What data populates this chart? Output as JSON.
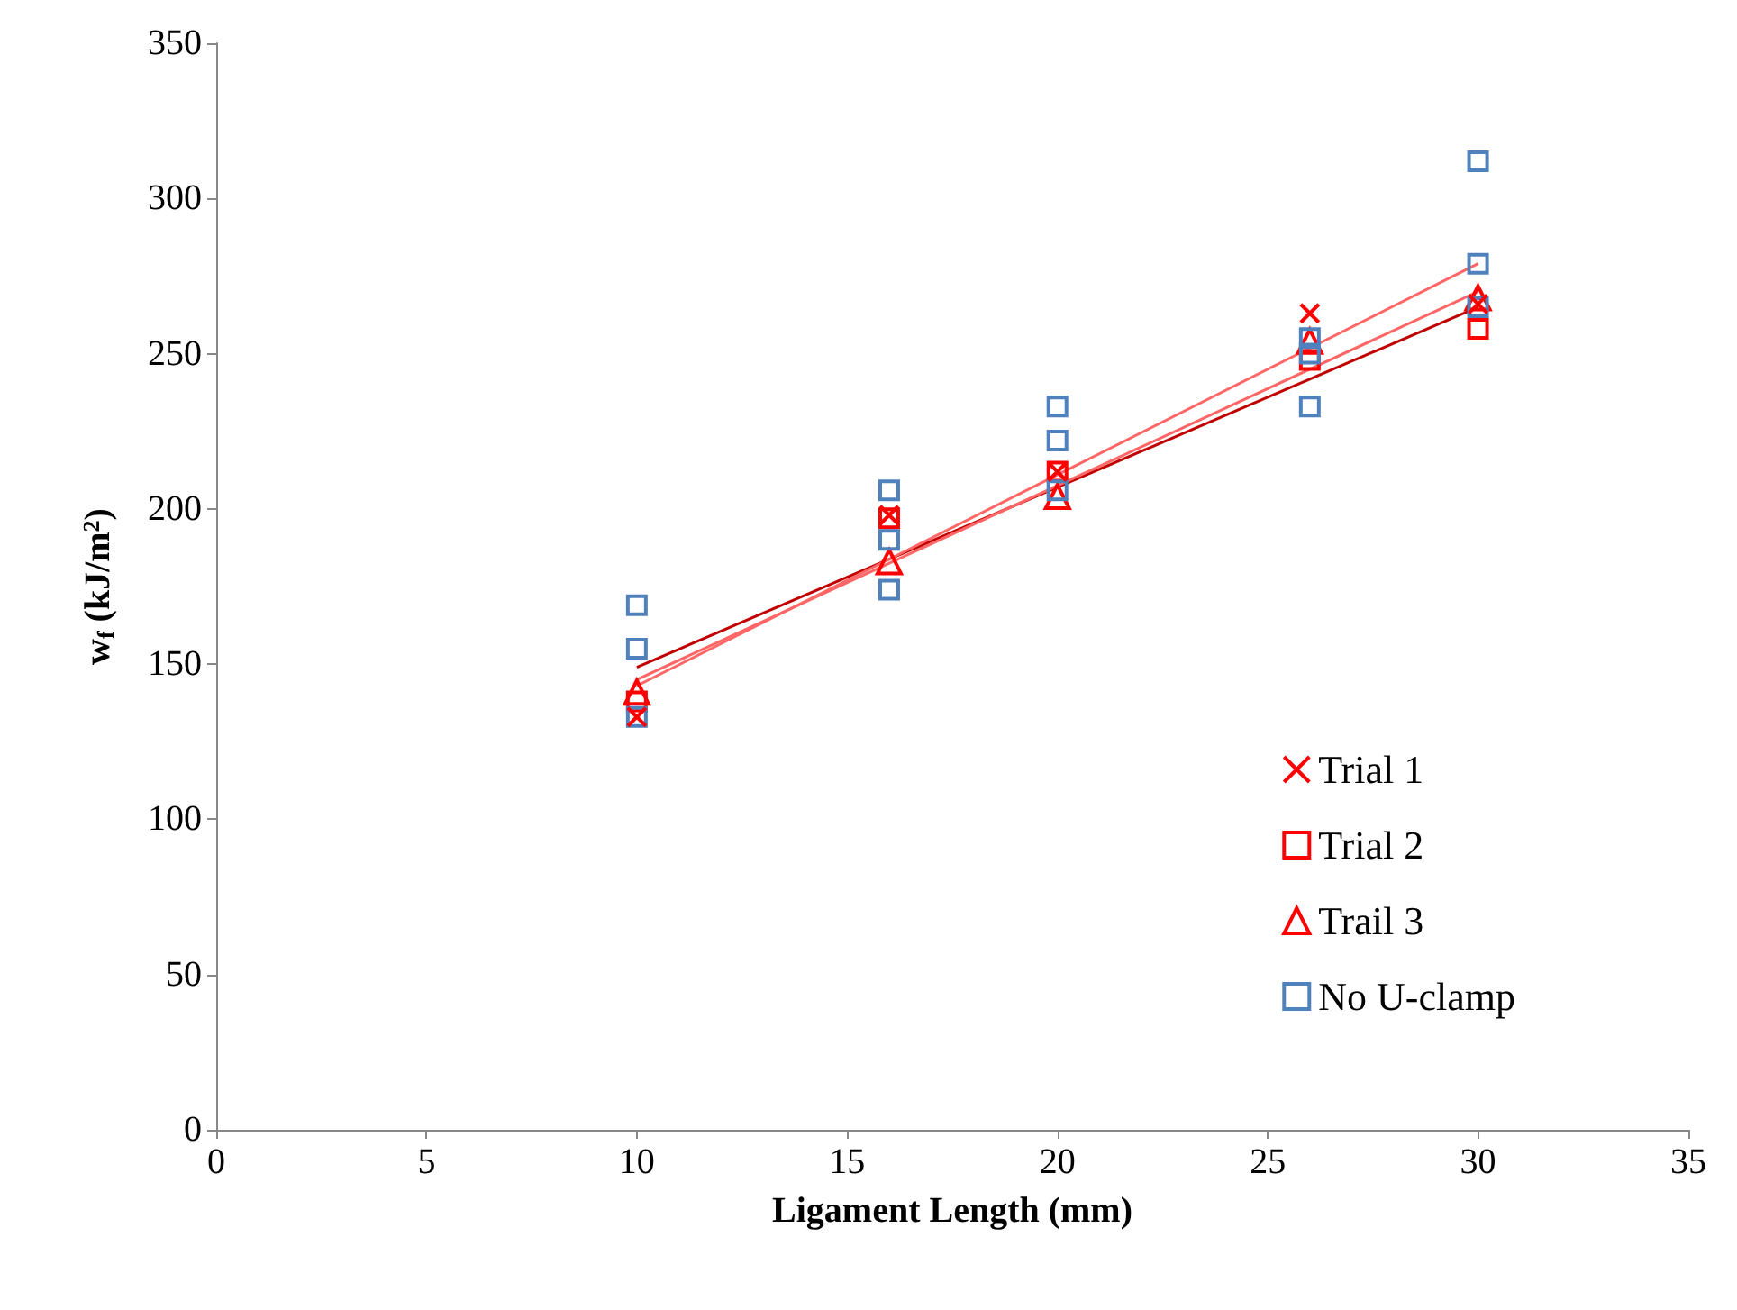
{
  "chart_data": {
    "type": "scatter",
    "xlabel": "Ligament Length (mm)",
    "ylabel": "w$_{f}$ (kJ/m$^{2}$)",
    "xlim": [
      0,
      35
    ],
    "xticks": [
      0,
      5,
      10,
      15,
      20,
      25,
      30,
      35
    ],
    "ylim": [
      0,
      350
    ],
    "yticks": [
      0,
      50,
      100,
      150,
      200,
      250,
      300,
      350
    ],
    "grid": false,
    "legend": "bottom right",
    "series": [
      {
        "name": "Trial 1",
        "color": "#ff0000",
        "marker": "cross",
        "x": [
          10,
          16,
          20,
          26,
          30
        ],
        "values": [
          133,
          198,
          212,
          263,
          266
        ]
      },
      {
        "name": "Trial 2",
        "color": "#ff0000",
        "marker": "square",
        "x": [
          10,
          16,
          20,
          26,
          30
        ],
        "values": [
          138,
          197,
          212,
          248,
          258
        ]
      },
      {
        "name": "Trail 3",
        "color": "#ff0000",
        "marker": "triangle",
        "x": [
          10,
          16,
          20,
          26,
          30
        ],
        "values": [
          141,
          183,
          204,
          254,
          268
        ]
      },
      {
        "name": "No U-clamp",
        "color": "#4f81bd",
        "marker": "square",
        "x": [
          10,
          10,
          10,
          16,
          16,
          16,
          20,
          20,
          20,
          26,
          26,
          26,
          30,
          30,
          30
        ],
        "values": [
          169,
          155,
          133,
          206,
          190,
          174,
          233,
          222,
          206,
          255,
          250,
          233,
          312,
          279,
          265
        ]
      },
      {
        "type": "line",
        "color": "#c00000",
        "marker": "none",
        "x": [
          10,
          30
        ],
        "values": [
          149,
          265
        ]
      },
      {
        "type": "line",
        "color": "#ff6666",
        "marker": "none",
        "x": [
          10,
          30
        ],
        "values": [
          145,
          270
        ]
      },
      {
        "type": "line",
        "color": "#ff6666",
        "marker": "none",
        "x": [
          10,
          30
        ],
        "values": [
          143,
          279
        ]
      }
    ]
  }
}
